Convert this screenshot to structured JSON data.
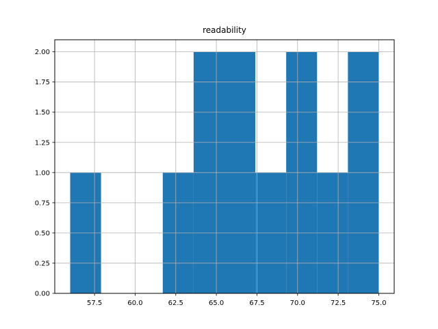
{
  "chart_data": {
    "type": "bar",
    "title": "readability",
    "xlabel": "",
    "ylabel": "",
    "grid": true,
    "bar_color": "#1f77b4",
    "grid_color": "#b0b0b0",
    "xlim": [
      55.05,
      75.95
    ],
    "ylim": [
      0,
      2.1
    ],
    "xticks": [
      57.5,
      60.0,
      62.5,
      65.0,
      67.5,
      70.0,
      72.5,
      75.0
    ],
    "xtick_labels": [
      "57.5",
      "60.0",
      "62.5",
      "65.0",
      "67.5",
      "70.0",
      "72.5",
      "75.0"
    ],
    "yticks": [
      0.0,
      0.25,
      0.5,
      0.75,
      1.0,
      1.25,
      1.5,
      1.75,
      2.0
    ],
    "ytick_labels": [
      "0.00",
      "0.25",
      "0.50",
      "0.75",
      "1.00",
      "1.25",
      "1.50",
      "1.75",
      "2.00"
    ],
    "bins": [
      {
        "start": 56.0,
        "end": 57.9,
        "count": 1
      },
      {
        "start": 57.9,
        "end": 59.8,
        "count": 0
      },
      {
        "start": 59.8,
        "end": 61.7,
        "count": 0
      },
      {
        "start": 61.7,
        "end": 63.6,
        "count": 1
      },
      {
        "start": 63.6,
        "end": 65.5,
        "count": 2
      },
      {
        "start": 65.5,
        "end": 67.4,
        "count": 2
      },
      {
        "start": 67.4,
        "end": 69.3,
        "count": 1
      },
      {
        "start": 69.3,
        "end": 71.2,
        "count": 2
      },
      {
        "start": 71.2,
        "end": 73.1,
        "count": 1
      },
      {
        "start": 73.1,
        "end": 75.0,
        "count": 2
      }
    ]
  }
}
